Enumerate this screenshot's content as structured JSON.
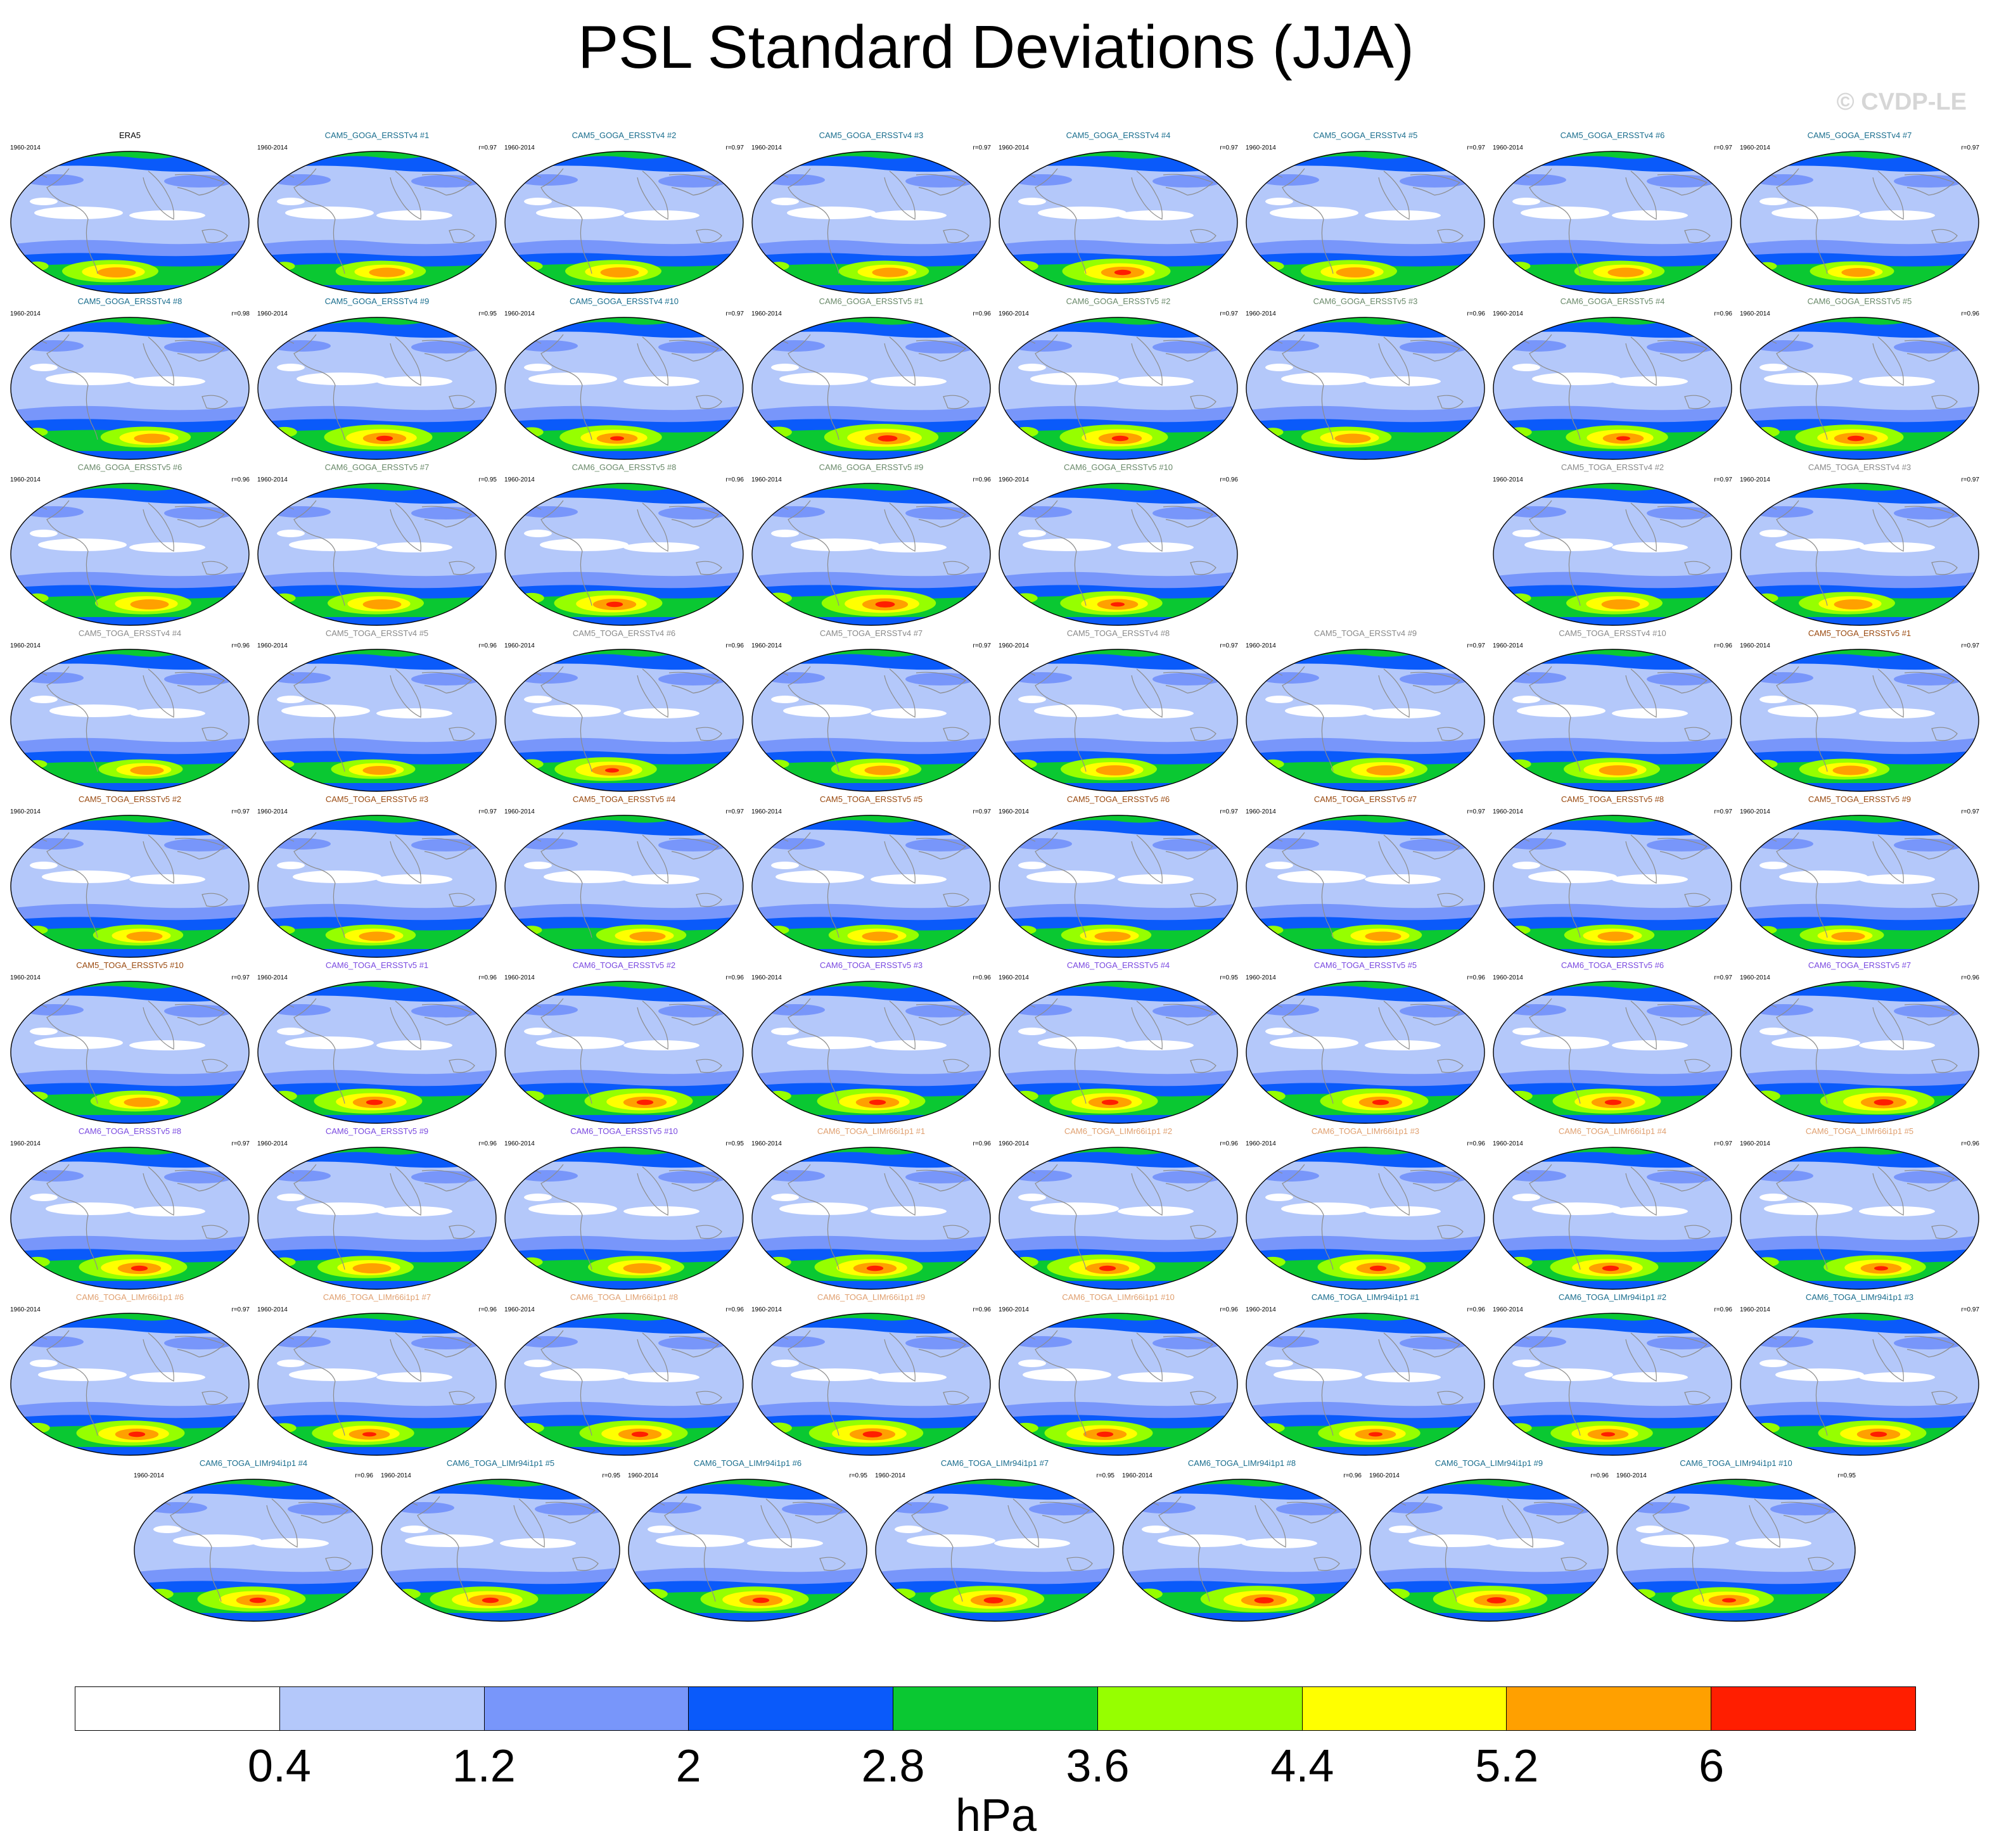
{
  "title": "PSL Standard Deviations (JJA)",
  "copyright": "© CVDP-LE",
  "units": "hPa",
  "colors": [
    "#ffffff",
    "#b4c8fa",
    "#7896fa",
    "#0a5afa",
    "#0ac832",
    "#96ff00",
    "#ffff00",
    "#ffa000",
    "#ff1e00"
  ],
  "colorbar_labels": [
    "0.4",
    "1.2",
    "2",
    "2.8",
    "3.6",
    "4.4",
    "5.2",
    "6"
  ],
  "panels": [
    {
      "title": "ERA5",
      "years": "1960-2014",
      "corr": "",
      "color": "#000000",
      "intensity": 0.8,
      "blank": false
    },
    {
      "title": "CAM5_GOGA_ERSSTv4 #1",
      "years": "1960-2014",
      "corr": "r=0.97",
      "color": "#1a6e8e",
      "intensity": 0.75,
      "blank": false
    },
    {
      "title": "CAM5_GOGA_ERSSTv4 #2",
      "years": "1960-2014",
      "corr": "r=0.97",
      "color": "#1a6e8e",
      "intensity": 0.8,
      "blank": false
    },
    {
      "title": "CAM5_GOGA_ERSSTv4 #3",
      "years": "1960-2014",
      "corr": "r=0.97",
      "color": "#1a6e8e",
      "intensity": 0.75,
      "blank": false
    },
    {
      "title": "CAM5_GOGA_ERSSTv4 #4",
      "years": "1960-2014",
      "corr": "r=0.97",
      "color": "#1a6e8e",
      "intensity": 0.9,
      "blank": false
    },
    {
      "title": "CAM5_GOGA_ERSSTv4 #5",
      "years": "1960-2014",
      "corr": "r=0.97",
      "color": "#1a6e8e",
      "intensity": 0.8,
      "blank": false
    },
    {
      "title": "CAM5_GOGA_ERSSTv4 #6",
      "years": "1960-2014",
      "corr": "r=0.97",
      "color": "#1a6e8e",
      "intensity": 0.75,
      "blank": false
    },
    {
      "title": "CAM5_GOGA_ERSSTv4 #7",
      "years": "1960-2014",
      "corr": "r=0.97",
      "color": "#1a6e8e",
      "intensity": 0.7,
      "blank": false
    },
    {
      "title": "CAM5_GOGA_ERSSTv4 #8",
      "years": "1960-2014",
      "corr": "r=0.98",
      "color": "#1a6e8e",
      "intensity": 0.75,
      "blank": false
    },
    {
      "title": "CAM5_GOGA_ERSSTv4 #9",
      "years": "1960-2014",
      "corr": "r=0.95",
      "color": "#1a6e8e",
      "intensity": 0.9,
      "blank": false
    },
    {
      "title": "CAM5_GOGA_ERSSTv4 #10",
      "years": "1960-2014",
      "corr": "r=0.97",
      "color": "#1a6e8e",
      "intensity": 0.85,
      "blank": false
    },
    {
      "title": "CAM6_GOGA_ERSSTv5 #1",
      "years": "1960-2014",
      "corr": "r=0.96",
      "color": "#6a8a6a",
      "intensity": 0.95,
      "blank": false
    },
    {
      "title": "CAM6_GOGA_ERSSTv5 #2",
      "years": "1960-2014",
      "corr": "r=0.97",
      "color": "#6a8a6a",
      "intensity": 0.9,
      "blank": false
    },
    {
      "title": "CAM6_GOGA_ERSSTv5 #3",
      "years": "1960-2014",
      "corr": "r=0.96",
      "color": "#6a8a6a",
      "intensity": 0.75,
      "blank": false
    },
    {
      "title": "CAM6_GOGA_ERSSTv5 #4",
      "years": "1960-2014",
      "corr": "r=0.96",
      "color": "#6a8a6a",
      "intensity": 0.85,
      "blank": false
    },
    {
      "title": "CAM6_GOGA_ERSSTv5 #5",
      "years": "1960-2014",
      "corr": "r=0.96",
      "color": "#6a8a6a",
      "intensity": 0.9,
      "blank": false
    },
    {
      "title": "CAM6_GOGA_ERSSTv5 #6",
      "years": "1960-2014",
      "corr": "r=0.96",
      "color": "#6a8a6a",
      "intensity": 0.8,
      "blank": false
    },
    {
      "title": "CAM6_GOGA_ERSSTv5 #7",
      "years": "1960-2014",
      "corr": "r=0.95",
      "color": "#6a8a6a",
      "intensity": 0.8,
      "blank": false
    },
    {
      "title": "CAM6_GOGA_ERSSTv5 #8",
      "years": "1960-2014",
      "corr": "r=0.96",
      "color": "#6a8a6a",
      "intensity": 0.9,
      "blank": false
    },
    {
      "title": "CAM6_GOGA_ERSSTv5 #9",
      "years": "1960-2014",
      "corr": "r=0.96",
      "color": "#6a8a6a",
      "intensity": 0.95,
      "blank": false
    },
    {
      "title": "CAM6_GOGA_ERSSTv5 #10",
      "years": "1960-2014",
      "corr": "r=0.96",
      "color": "#6a8a6a",
      "intensity": 0.85,
      "blank": false
    },
    {
      "title": "",
      "years": "",
      "corr": "",
      "color": "#000000",
      "intensity": 0,
      "blank": true
    },
    {
      "title": "CAM5_TOGA_ERSSTv4 #2",
      "years": "1960-2014",
      "corr": "r=0.97",
      "color": "#8a8a8a",
      "intensity": 0.8,
      "blank": false
    },
    {
      "title": "CAM5_TOGA_ERSSTv4 #3",
      "years": "1960-2014",
      "corr": "r=0.97",
      "color": "#8a8a8a",
      "intensity": 0.8,
      "blank": false
    },
    {
      "title": "CAM5_TOGA_ERSSTv4 #4",
      "years": "1960-2014",
      "corr": "r=0.96",
      "color": "#8a8a8a",
      "intensity": 0.7,
      "blank": false
    },
    {
      "title": "CAM5_TOGA_ERSSTv4 #5",
      "years": "1960-2014",
      "corr": "r=0.96",
      "color": "#8a8a8a",
      "intensity": 0.7,
      "blank": false
    },
    {
      "title": "CAM5_TOGA_ERSSTv4 #6",
      "years": "1960-2014",
      "corr": "r=0.96",
      "color": "#8a8a8a",
      "intensity": 0.85,
      "blank": false
    },
    {
      "title": "CAM5_TOGA_ERSSTv4 #7",
      "years": "1960-2014",
      "corr": "r=0.97",
      "color": "#8a8a8a",
      "intensity": 0.75,
      "blank": false
    },
    {
      "title": "CAM5_TOGA_ERSSTv4 #8",
      "years": "1960-2014",
      "corr": "r=0.97",
      "color": "#8a8a8a",
      "intensity": 0.8,
      "blank": false
    },
    {
      "title": "CAM5_TOGA_ERSSTv4 #9",
      "years": "1960-2014",
      "corr": "r=0.97",
      "color": "#8a8a8a",
      "intensity": 0.8,
      "blank": false
    },
    {
      "title": "CAM5_TOGA_ERSSTv4 #10",
      "years": "1960-2014",
      "corr": "r=0.96",
      "color": "#8a8a8a",
      "intensity": 0.8,
      "blank": false
    },
    {
      "title": "CAM5_TOGA_ERSSTv5 #1",
      "years": "1960-2014",
      "corr": "r=0.97",
      "color": "#9a4a10",
      "intensity": 0.75,
      "blank": false
    },
    {
      "title": "CAM5_TOGA_ERSSTv5 #2",
      "years": "1960-2014",
      "corr": "r=0.97",
      "color": "#9a4a10",
      "intensity": 0.75,
      "blank": false
    },
    {
      "title": "CAM5_TOGA_ERSSTv5 #3",
      "years": "1960-2014",
      "corr": "r=0.97",
      "color": "#9a4a10",
      "intensity": 0.75,
      "blank": false
    },
    {
      "title": "CAM5_TOGA_ERSSTv5 #4",
      "years": "1960-2014",
      "corr": "r=0.97",
      "color": "#9a4a10",
      "intensity": 0.75,
      "blank": false
    },
    {
      "title": "CAM5_TOGA_ERSSTv5 #5",
      "years": "1960-2014",
      "corr": "r=0.97",
      "color": "#9a4a10",
      "intensity": 0.75,
      "blank": false
    },
    {
      "title": "CAM5_TOGA_ERSSTv5 #6",
      "years": "1960-2014",
      "corr": "r=0.97",
      "color": "#9a4a10",
      "intensity": 0.75,
      "blank": false
    },
    {
      "title": "CAM5_TOGA_ERSSTv5 #7",
      "years": "1960-2014",
      "corr": "r=0.97",
      "color": "#9a4a10",
      "intensity": 0.75,
      "blank": false
    },
    {
      "title": "CAM5_TOGA_ERSSTv5 #8",
      "years": "1960-2014",
      "corr": "r=0.97",
      "color": "#9a4a10",
      "intensity": 0.75,
      "blank": false
    },
    {
      "title": "CAM5_TOGA_ERSSTv5 #9",
      "years": "1960-2014",
      "corr": "r=0.97",
      "color": "#9a4a10",
      "intensity": 0.7,
      "blank": false
    },
    {
      "title": "CAM5_TOGA_ERSSTv5 #10",
      "years": "1960-2014",
      "corr": "r=0.97",
      "color": "#9a4a10",
      "intensity": 0.75,
      "blank": false
    },
    {
      "title": "CAM6_TOGA_ERSSTv5 #1",
      "years": "1960-2014",
      "corr": "r=0.96",
      "color": "#7a4ae0",
      "intensity": 0.9,
      "blank": false
    },
    {
      "title": "CAM6_TOGA_ERSSTv5 #2",
      "years": "1960-2014",
      "corr": "r=0.96",
      "color": "#7a4ae0",
      "intensity": 0.9,
      "blank": false
    },
    {
      "title": "CAM6_TOGA_ERSSTv5 #3",
      "years": "1960-2014",
      "corr": "r=0.96",
      "color": "#7a4ae0",
      "intensity": 0.9,
      "blank": false
    },
    {
      "title": "CAM6_TOGA_ERSSTv5 #4",
      "years": "1960-2014",
      "corr": "r=0.95",
      "color": "#7a4ae0",
      "intensity": 0.9,
      "blank": false
    },
    {
      "title": "CAM6_TOGA_ERSSTv5 #5",
      "years": "1960-2014",
      "corr": "r=0.96",
      "color": "#7a4ae0",
      "intensity": 0.9,
      "blank": false
    },
    {
      "title": "CAM6_TOGA_ERSSTv5 #6",
      "years": "1960-2014",
      "corr": "r=0.97",
      "color": "#7a4ae0",
      "intensity": 0.9,
      "blank": false
    },
    {
      "title": "CAM6_TOGA_ERSSTv5 #7",
      "years": "1960-2014",
      "corr": "r=0.96",
      "color": "#7a4ae0",
      "intensity": 0.95,
      "blank": false
    },
    {
      "title": "CAM6_TOGA_ERSSTv5 #8",
      "years": "1960-2014",
      "corr": "r=0.97",
      "color": "#7a4ae0",
      "intensity": 0.9,
      "blank": false
    },
    {
      "title": "CAM6_TOGA_ERSSTv5 #9",
      "years": "1960-2014",
      "corr": "r=0.96",
      "color": "#7a4ae0",
      "intensity": 0.8,
      "blank": false
    },
    {
      "title": "CAM6_TOGA_ERSSTv5 #10",
      "years": "1960-2014",
      "corr": "r=0.95",
      "color": "#7a4ae0",
      "intensity": 0.8,
      "blank": false
    },
    {
      "title": "CAM6_TOGA_LIMr66i1p1 #1",
      "years": "1960-2014",
      "corr": "r=0.96",
      "color": "#e0a070",
      "intensity": 0.9,
      "blank": false
    },
    {
      "title": "CAM6_TOGA_LIMr66i1p1 #2",
      "years": "1960-2014",
      "corr": "r=0.96",
      "color": "#e0a070",
      "intensity": 0.9,
      "blank": false
    },
    {
      "title": "CAM6_TOGA_LIMr66i1p1 #3",
      "years": "1960-2014",
      "corr": "r=0.96",
      "color": "#e0a070",
      "intensity": 0.9,
      "blank": false
    },
    {
      "title": "CAM6_TOGA_LIMr66i1p1 #4",
      "years": "1960-2014",
      "corr": "r=0.97",
      "color": "#e0a070",
      "intensity": 0.9,
      "blank": false
    },
    {
      "title": "CAM6_TOGA_LIMr66i1p1 #5",
      "years": "1960-2014",
      "corr": "r=0.96",
      "color": "#e0a070",
      "intensity": 0.85,
      "blank": false
    },
    {
      "title": "CAM6_TOGA_LIMr66i1p1 #6",
      "years": "1960-2014",
      "corr": "r=0.97",
      "color": "#e0a070",
      "intensity": 0.9,
      "blank": false
    },
    {
      "title": "CAM6_TOGA_LIMr66i1p1 #7",
      "years": "1960-2014",
      "corr": "r=0.96",
      "color": "#e0a070",
      "intensity": 0.85,
      "blank": false
    },
    {
      "title": "CAM6_TOGA_LIMr66i1p1 #8",
      "years": "1960-2014",
      "corr": "r=0.96",
      "color": "#e0a070",
      "intensity": 0.9,
      "blank": false
    },
    {
      "title": "CAM6_TOGA_LIMr66i1p1 #9",
      "years": "1960-2014",
      "corr": "r=0.96",
      "color": "#e0a070",
      "intensity": 0.95,
      "blank": false
    },
    {
      "title": "CAM6_TOGA_LIMr66i1p1 #10",
      "years": "1960-2014",
      "corr": "r=0.96",
      "color": "#e0a070",
      "intensity": 0.9,
      "blank": false
    },
    {
      "title": "CAM6_TOGA_LIMr94i1p1 #1",
      "years": "1960-2014",
      "corr": "r=0.96",
      "color": "#1a6e8e",
      "intensity": 0.85,
      "blank": false
    },
    {
      "title": "CAM6_TOGA_LIMr94i1p1 #2",
      "years": "1960-2014",
      "corr": "r=0.96",
      "color": "#1a6e8e",
      "intensity": 0.85,
      "blank": false
    },
    {
      "title": "CAM6_TOGA_LIMr94i1p1 #3",
      "years": "1960-2014",
      "corr": "r=0.97",
      "color": "#1a6e8e",
      "intensity": 0.9,
      "blank": false
    },
    {
      "title": "CAM6_TOGA_LIMr94i1p1 #4",
      "years": "1960-2014",
      "corr": "r=0.96",
      "color": "#1a6e8e",
      "intensity": 0.9,
      "blank": false
    },
    {
      "title": "CAM6_TOGA_LIMr94i1p1 #5",
      "years": "1960-2014",
      "corr": "r=0.95",
      "color": "#1a6e8e",
      "intensity": 0.9,
      "blank": false
    },
    {
      "title": "CAM6_TOGA_LIMr94i1p1 #6",
      "years": "1960-2014",
      "corr": "r=0.95",
      "color": "#1a6e8e",
      "intensity": 0.9,
      "blank": false
    },
    {
      "title": "CAM6_TOGA_LIMr94i1p1 #7",
      "years": "1960-2014",
      "corr": "r=0.95",
      "color": "#1a6e8e",
      "intensity": 0.95,
      "blank": false
    },
    {
      "title": "CAM6_TOGA_LIMr94i1p1 #8",
      "years": "1960-2014",
      "corr": "r=0.96",
      "color": "#1a6e8e",
      "intensity": 0.95,
      "blank": false
    },
    {
      "title": "CAM6_TOGA_LIMr94i1p1 #9",
      "years": "1960-2014",
      "corr": "r=0.96",
      "color": "#1a6e8e",
      "intensity": 0.95,
      "blank": false
    },
    {
      "title": "CAM6_TOGA_LIMr94i1p1 #10",
      "years": "1960-2014",
      "corr": "r=0.95",
      "color": "#1a6e8e",
      "intensity": 0.85,
      "blank": false
    }
  ]
}
